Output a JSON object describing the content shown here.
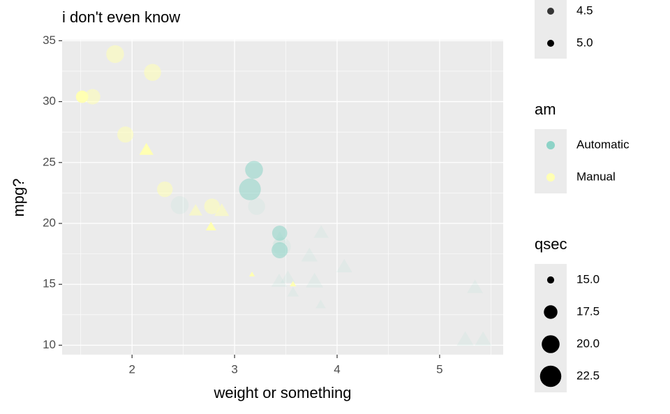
{
  "chart_data": {
    "type": "scatter",
    "title": "i don't even know",
    "x_label": "weight or something",
    "y_label": "mpg?",
    "xlim": [
      1.318,
      5.62
    ],
    "ylim": [
      9.225,
      35.075
    ],
    "xticks": [
      2,
      3,
      4,
      5
    ],
    "yticks": [
      10,
      15,
      20,
      25,
      30,
      35
    ],
    "grid": true,
    "series": [
      {
        "name": "Automatic",
        "color": "#8dd3c7",
        "x": [
          3.215,
          3.44,
          3.46,
          3.57,
          3.19,
          3.15,
          3.44,
          3.44,
          4.07,
          3.73,
          3.78,
          5.25,
          5.424,
          5.345,
          2.465,
          3.52,
          3.435,
          3.84,
          3.845
        ],
        "values": [
          21.4,
          18.7,
          18.1,
          14.3,
          24.4,
          22.8,
          19.2,
          17.8,
          16.4,
          17.3,
          15.2,
          10.4,
          10.4,
          14.7,
          21.5,
          15.5,
          15.2,
          13.3,
          19.2
        ],
        "sizes": [
          19.44,
          17.02,
          20.22,
          15.84,
          20.0,
          22.9,
          18.3,
          18.9,
          17.4,
          17.6,
          18.0,
          17.98,
          17.82,
          17.42,
          20.01,
          16.87,
          17.3,
          15.41,
          17.05
        ],
        "alphas": [
          3,
          3,
          3,
          3,
          4,
          4,
          4,
          4,
          3,
          3,
          3,
          3,
          3,
          3,
          3,
          3,
          3,
          3,
          3
        ],
        "shapes": [
          "circle",
          "triangle",
          "circle",
          "triangle",
          "circle",
          "circle",
          "circle",
          "circle",
          "triangle",
          "triangle",
          "triangle",
          "triangle",
          "triangle",
          "triangle",
          "circle",
          "triangle",
          "triangle",
          "triangle",
          "triangle"
        ]
      },
      {
        "name": "Manual",
        "color": "#ffffb3",
        "x": [
          2.62,
          2.875,
          2.32,
          2.2,
          1.615,
          1.835,
          1.935,
          2.14,
          1.513,
          3.17,
          2.77,
          3.57,
          2.78
        ],
        "values": [
          21.0,
          21.0,
          22.8,
          32.4,
          30.4,
          33.9,
          27.3,
          26.0,
          30.4,
          15.8,
          19.7,
          15.0,
          21.4
        ],
        "sizes": [
          16.46,
          17.02,
          18.61,
          19.47,
          18.52,
          19.9,
          18.9,
          16.7,
          16.9,
          14.5,
          15.5,
          14.6,
          18.6
        ],
        "alphas": [
          4,
          4,
          4,
          4,
          4,
          4,
          4,
          5,
          5,
          5,
          5,
          5,
          4
        ],
        "shapes": [
          "triangle",
          "triangle",
          "circle",
          "circle",
          "circle",
          "circle",
          "circle",
          "triangle",
          "circle",
          "triangle",
          "triangle",
          "triangle",
          "circle"
        ]
      }
    ],
    "alpha_legend": {
      "labels": [
        {
          "value": 4.5,
          "label": "4.5"
        },
        {
          "value": 5,
          "label": "5.0"
        }
      ]
    },
    "color_legend": {
      "title": "am"
    },
    "size_legend": {
      "title": "qsec",
      "labels": [
        {
          "value": 15,
          "label": "15.0"
        },
        {
          "value": 17.5,
          "label": "17.5"
        },
        {
          "value": 20,
          "label": "20.0"
        },
        {
          "value": 22.5,
          "label": "22.5"
        }
      ]
    }
  }
}
